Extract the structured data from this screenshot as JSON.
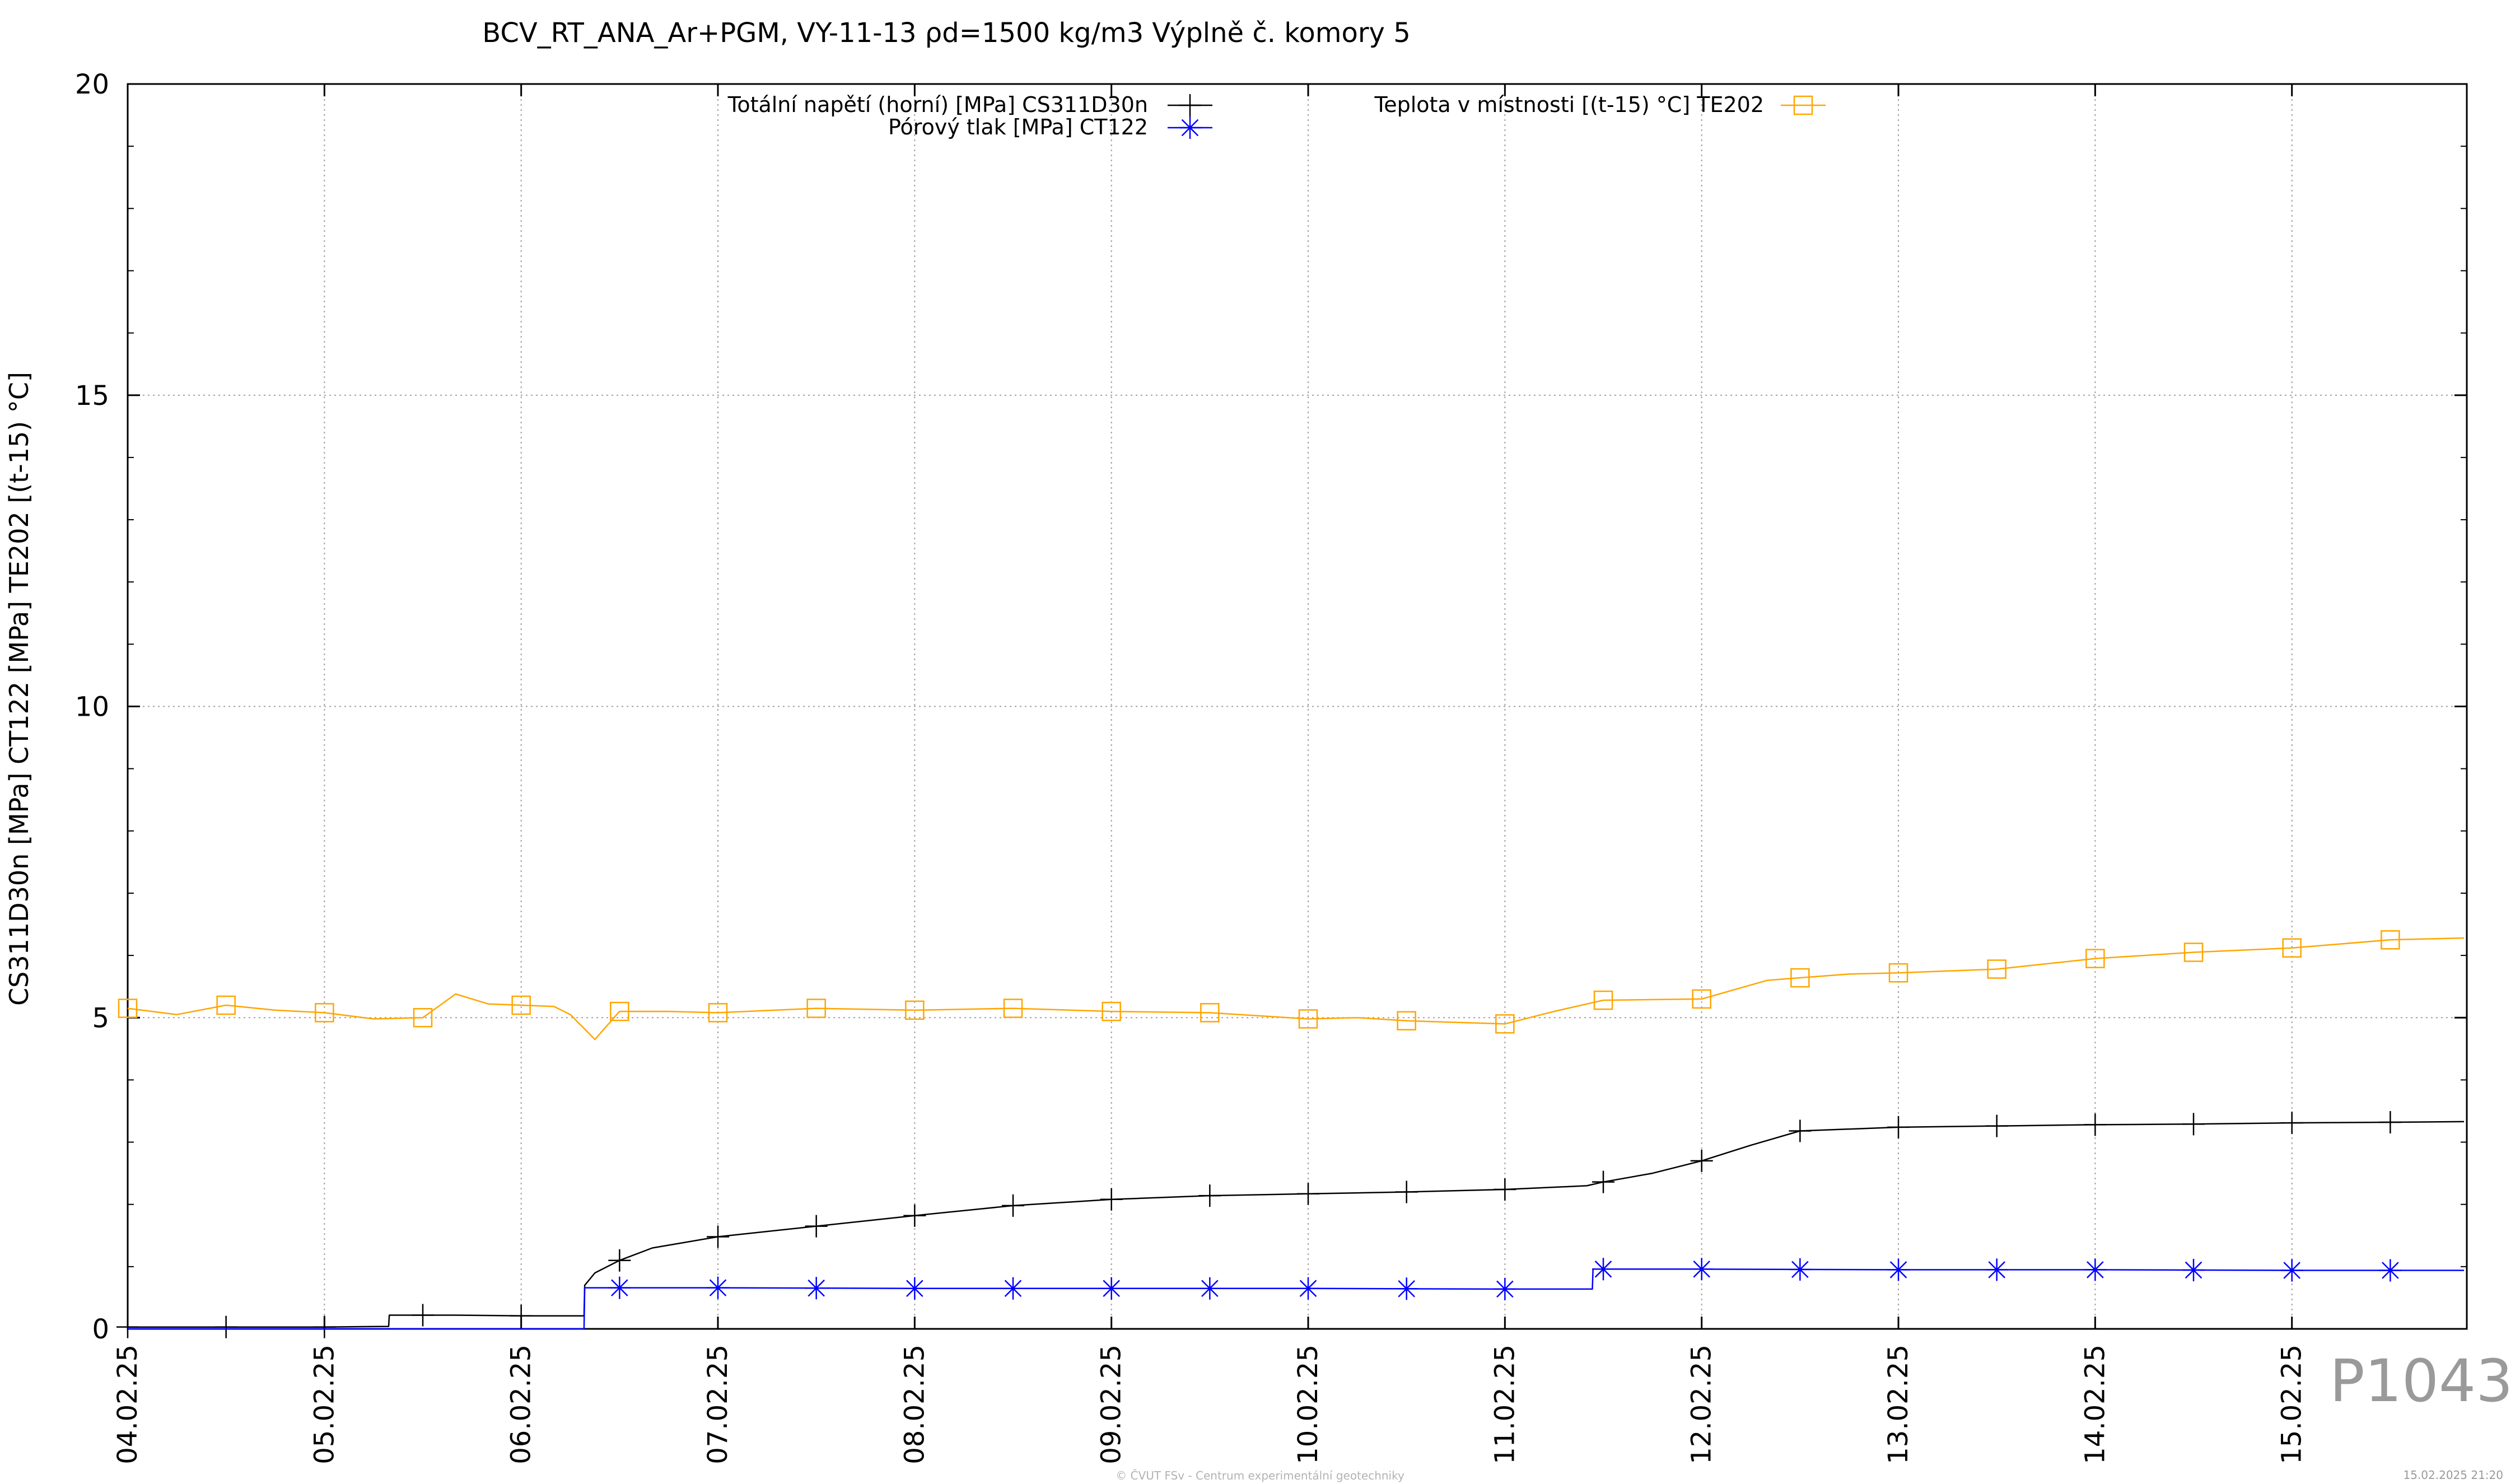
{
  "chart_data": {
    "type": "line",
    "title": "BCV_RT_ANA_Ar+PGM, VY-11-13 ρd=1500 kg/m3 Výplně č. komory 5",
    "xlabel": "",
    "ylabel": "CS311D30n [MPa] CT122 [MPa] TE202 [(t-15) °C]",
    "x_type": "date",
    "xlim": [
      "2025-02-04",
      "2025-02-15T21:20"
    ],
    "ylim": [
      0,
      20
    ],
    "yticks": [
      0,
      5,
      10,
      15,
      20
    ],
    "xtick_labels": [
      "04.02.25",
      "05.02.25",
      "06.02.25",
      "07.02.25",
      "08.02.25",
      "09.02.25",
      "10.02.25",
      "11.02.25",
      "12.02.25",
      "13.02.25",
      "14.02.25",
      "15.02.25"
    ],
    "grid": true,
    "legend_position": "top",
    "series": [
      {
        "name": "Totální napětí (horní) [MPa] CS311D30n",
        "color": "#000000",
        "marker": "plus",
        "x": [
          "2025-02-04T00:00",
          "2025-02-04T12:00",
          "2025-02-05T00:00",
          "2025-02-05T07:50",
          "2025-02-05T07:55",
          "2025-02-05T16:00",
          "2025-02-06T00:00",
          "2025-02-06T07:40",
          "2025-02-06T07:45",
          "2025-02-06T09:00",
          "2025-02-06T12:00",
          "2025-02-06T16:00",
          "2025-02-07T00:00",
          "2025-02-07T12:00",
          "2025-02-08T00:00",
          "2025-02-08T12:00",
          "2025-02-09T00:00",
          "2025-02-09T12:00",
          "2025-02-10T00:00",
          "2025-02-10T12:00",
          "2025-02-11T00:00",
          "2025-02-11T10:00",
          "2025-02-11T12:00",
          "2025-02-11T18:00",
          "2025-02-12T00:00",
          "2025-02-12T06:00",
          "2025-02-12T12:00",
          "2025-02-13T00:00",
          "2025-02-13T12:00",
          "2025-02-14T00:00",
          "2025-02-14T12:00",
          "2025-02-15T00:00",
          "2025-02-15T12:00",
          "2025-02-15T21:00"
        ],
        "values": [
          0.03,
          0.03,
          0.03,
          0.04,
          0.22,
          0.22,
          0.21,
          0.21,
          0.7,
          0.9,
          1.1,
          1.3,
          1.48,
          1.65,
          1.82,
          1.98,
          2.08,
          2.14,
          2.17,
          2.2,
          2.24,
          2.3,
          2.36,
          2.5,
          2.7,
          2.95,
          3.18,
          3.24,
          3.26,
          3.28,
          3.29,
          3.31,
          3.32,
          3.33
        ]
      },
      {
        "name": "Pórový tlak [MPa] CT122",
        "color": "#0000ff",
        "marker": "star",
        "x": [
          "2025-02-04T00:00",
          "2025-02-05T00:00",
          "2025-02-06T00:00",
          "2025-02-06T07:40",
          "2025-02-06T07:45",
          "2025-02-07T00:00",
          "2025-02-08T00:00",
          "2025-02-09T00:00",
          "2025-02-10T00:00",
          "2025-02-11T00:00",
          "2025-02-11T10:40",
          "2025-02-11T10:45",
          "2025-02-12T00:00",
          "2025-02-13T00:00",
          "2025-02-14T00:00",
          "2025-02-15T00:00",
          "2025-02-15T21:00"
        ],
        "values": [
          0,
          0,
          0,
          0,
          0.66,
          0.66,
          0.65,
          0.65,
          0.65,
          0.64,
          0.64,
          0.96,
          0.96,
          0.95,
          0.95,
          0.94,
          0.94
        ]
      },
      {
        "name": "Teplota v místnosti [(t-15) °C] TE202",
        "color": "#ffa500",
        "marker": "square",
        "x": [
          "2025-02-04T00:00",
          "2025-02-04T06:00",
          "2025-02-04T12:00",
          "2025-02-04T18:00",
          "2025-02-05T00:00",
          "2025-02-05T06:00",
          "2025-02-05T12:00",
          "2025-02-05T16:00",
          "2025-02-05T20:00",
          "2025-02-06T00:00",
          "2025-02-06T04:00",
          "2025-02-06T06:00",
          "2025-02-06T09:00",
          "2025-02-06T12:00",
          "2025-02-06T18:00",
          "2025-02-07T00:00",
          "2025-02-07T12:00",
          "2025-02-08T00:00",
          "2025-02-08T12:00",
          "2025-02-09T00:00",
          "2025-02-09T12:00",
          "2025-02-10T00:00",
          "2025-02-10T06:00",
          "2025-02-10T12:00",
          "2025-02-11T00:00",
          "2025-02-11T06:00",
          "2025-02-11T12:00",
          "2025-02-12T00:00",
          "2025-02-12T08:00",
          "2025-02-12T10:00",
          "2025-02-12T18:00",
          "2025-02-13T00:00",
          "2025-02-13T12:00",
          "2025-02-14T00:00",
          "2025-02-14T12:00",
          "2025-02-15T00:00",
          "2025-02-15T12:00",
          "2025-02-15T21:00"
        ],
        "values": [
          5.15,
          5.05,
          5.2,
          5.12,
          5.08,
          4.98,
          5.0,
          5.38,
          5.22,
          5.2,
          5.18,
          5.05,
          4.65,
          5.1,
          5.1,
          5.08,
          5.15,
          5.12,
          5.15,
          5.1,
          5.08,
          4.98,
          5.0,
          4.95,
          4.9,
          5.1,
          5.28,
          5.3,
          5.6,
          5.62,
          5.7,
          5.72,
          5.78,
          5.95,
          6.05,
          6.12,
          6.25,
          6.28
        ]
      }
    ]
  },
  "watermark": "P1043",
  "copyright": "© ČVUT FSv - Centrum experimentální geotechniky",
  "timestamp": "15.02.2025 21:20"
}
